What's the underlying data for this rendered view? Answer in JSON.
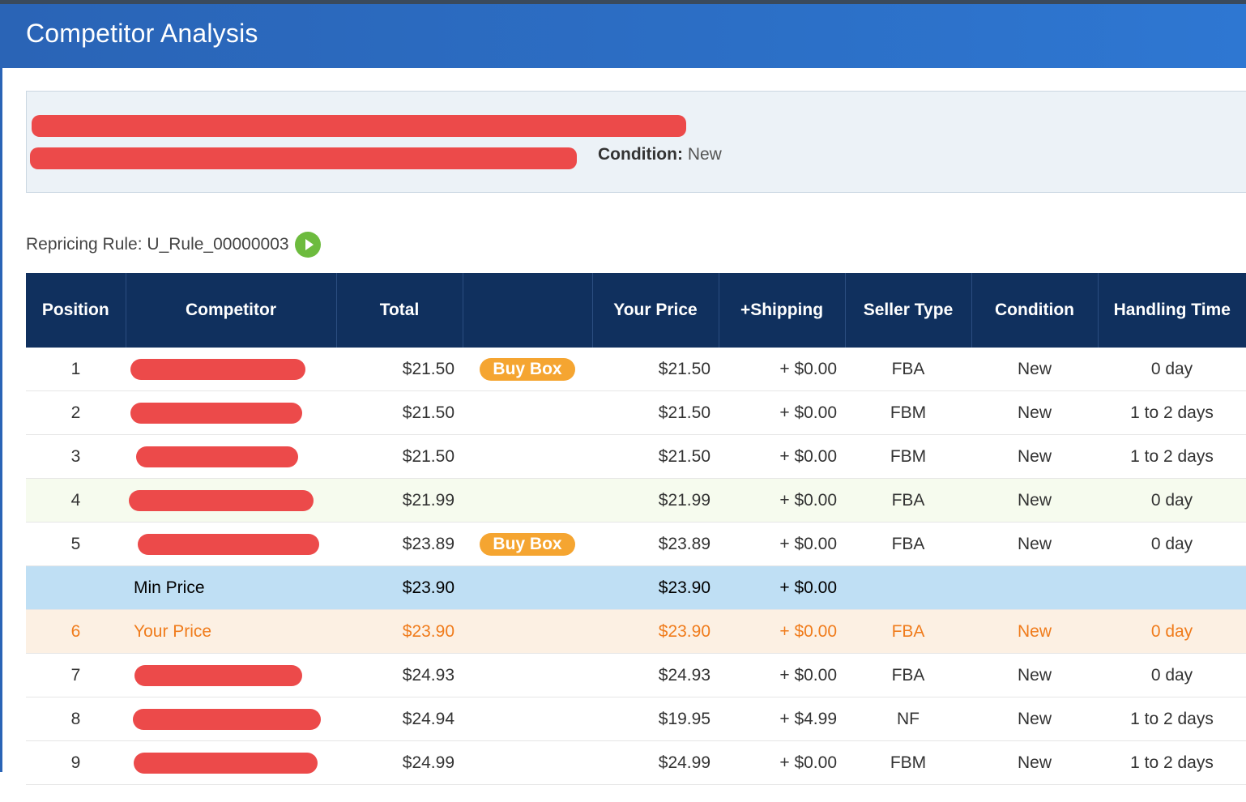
{
  "header": {
    "title": "Competitor Analysis"
  },
  "product": {
    "condition_label": "Condition:",
    "condition_value": "New"
  },
  "repricing": {
    "label": "Repricing Rule: U_Rule_00000003",
    "play_icon": "play-circle-icon",
    "play_color": "#6dbb3e"
  },
  "colors": {
    "header_bg": "#2c6fc6",
    "table_header_bg": "#10305e",
    "redaction": "#ec4a4a",
    "buy_box": "#f5a531",
    "your_price_text": "#f07c1c"
  },
  "table": {
    "columns": [
      "Position",
      "Competitor",
      "Total",
      "",
      "Your Price",
      "+Shipping",
      "Seller Type",
      "Condition",
      "Handling Time"
    ],
    "rows": [
      {
        "position": "1",
        "competitor": "",
        "total": "$21.50",
        "badge": "Buy Box",
        "your_price": "$21.50",
        "shipping": "+ $0.00",
        "seller_type": "FBA",
        "condition": "New",
        "handling": "0 day",
        "redacted": true
      },
      {
        "position": "2",
        "competitor": "",
        "total": "$21.50",
        "badge": "",
        "your_price": "$21.50",
        "shipping": "+ $0.00",
        "seller_type": "FBM",
        "condition": "New",
        "handling": "1 to 2 days",
        "redacted": true
      },
      {
        "position": "3",
        "competitor": "",
        "total": "$21.50",
        "badge": "",
        "your_price": "$21.50",
        "shipping": "+ $0.00",
        "seller_type": "FBM",
        "condition": "New",
        "handling": "1 to 2 days",
        "redacted": true
      },
      {
        "position": "4",
        "competitor": "",
        "total": "$21.99",
        "badge": "",
        "your_price": "$21.99",
        "shipping": "+ $0.00",
        "seller_type": "FBA",
        "condition": "New",
        "handling": "0 day",
        "redacted": true
      },
      {
        "position": "5",
        "competitor": "",
        "total": "$23.89",
        "badge": "Buy Box",
        "your_price": "$23.89",
        "shipping": "+ $0.00",
        "seller_type": "FBA",
        "condition": "New",
        "handling": "0 day",
        "redacted": true
      },
      {
        "position": "",
        "competitor": "Min Price",
        "total": "$23.90",
        "badge": "",
        "your_price": "$23.90",
        "shipping": "+ $0.00",
        "seller_type": "",
        "condition": "",
        "handling": "",
        "redacted": false
      },
      {
        "position": "6",
        "competitor": "Your Price",
        "total": "$23.90",
        "badge": "",
        "your_price": "$23.90",
        "shipping": "+ $0.00",
        "seller_type": "FBA",
        "condition": "New",
        "handling": "0 day",
        "redacted": false
      },
      {
        "position": "7",
        "competitor": "",
        "total": "$24.93",
        "badge": "",
        "your_price": "$24.93",
        "shipping": "+ $0.00",
        "seller_type": "FBA",
        "condition": "New",
        "handling": "0 day",
        "redacted": true
      },
      {
        "position": "8",
        "competitor": "",
        "total": "$24.94",
        "badge": "",
        "your_price": "$19.95",
        "shipping": "+ $4.99",
        "seller_type": "NF",
        "condition": "New",
        "handling": "1 to 2 days",
        "redacted": true
      },
      {
        "position": "9",
        "competitor": "",
        "total": "$24.99",
        "badge": "",
        "your_price": "$24.99",
        "shipping": "+ $0.00",
        "seller_type": "FBM",
        "condition": "New",
        "handling": "1 to 2 days",
        "redacted": true
      }
    ]
  }
}
